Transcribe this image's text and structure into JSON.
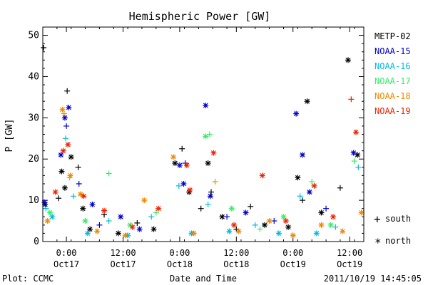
{
  "chart_data": {
    "type": "scatter",
    "title": "Hemispheric Power [GW]",
    "ylabel": "P [GW]",
    "xlabel": "Date and Time",
    "ylim": [
      0,
      52
    ],
    "xlim": [
      "2011-10-16T19:00",
      "2011-10-19T15:00"
    ],
    "yticks": [
      "0",
      "10",
      "20",
      "30",
      "40",
      "50"
    ],
    "xticks": [
      {
        "t": "2011-10-17T00:00",
        "label1": "0:00",
        "label2": "Oct17"
      },
      {
        "t": "2011-10-17T12:00",
        "label1": "12:00",
        "label2": "Oct17"
      },
      {
        "t": "2011-10-18T00:00",
        "label1": "0:00",
        "label2": "Oct18"
      },
      {
        "t": "2011-10-18T12:00",
        "label1": "12:00",
        "label2": "Oct18"
      },
      {
        "t": "2011-10-19T00:00",
        "label1": "0:00",
        "label2": "Oct19"
      },
      {
        "t": "2011-10-19T12:00",
        "label1": "12:00",
        "label2": "Oct19"
      }
    ],
    "legend_position": "right",
    "marker_legend": {
      "plus": "south",
      "star": "north"
    },
    "series": [
      {
        "name": "METP-02",
        "color": "#000000",
        "points": [
          {
            "t": "2011-10-16T19:10",
            "y": 47,
            "m": "plus"
          },
          {
            "t": "2011-10-16T19:30",
            "y": 9,
            "m": "star"
          },
          {
            "t": "2011-10-16T22:20",
            "y": 10.5,
            "m": "plus"
          },
          {
            "t": "2011-10-16T23:00",
            "y": 17,
            "m": "star"
          },
          {
            "t": "2011-10-16T23:40",
            "y": 13,
            "m": "star"
          },
          {
            "t": "2011-10-17T00:10",
            "y": 36.5,
            "m": "plus"
          },
          {
            "t": "2011-10-17T01:00",
            "y": 20.5,
            "m": "star"
          },
          {
            "t": "2011-10-17T02:30",
            "y": 18,
            "m": "plus"
          },
          {
            "t": "2011-10-17T03:30",
            "y": 8,
            "m": "star"
          },
          {
            "t": "2011-10-17T05:00",
            "y": 3,
            "m": "star"
          },
          {
            "t": "2011-10-17T08:00",
            "y": 6.5,
            "m": "plus"
          },
          {
            "t": "2011-10-17T11:00",
            "y": 2,
            "m": "star"
          },
          {
            "t": "2011-10-17T15:00",
            "y": 4.5,
            "m": "plus"
          },
          {
            "t": "2011-10-17T18:30",
            "y": 3,
            "m": "star"
          },
          {
            "t": "2011-10-17T23:00",
            "y": 19,
            "m": "star"
          },
          {
            "t": "2011-10-18T00:30",
            "y": 22.5,
            "m": "plus"
          },
          {
            "t": "2011-10-18T02:00",
            "y": 12,
            "m": "star"
          },
          {
            "t": "2011-10-18T04:30",
            "y": 8,
            "m": "plus"
          },
          {
            "t": "2011-10-18T06:00",
            "y": 19,
            "m": "star"
          },
          {
            "t": "2011-10-18T06:40",
            "y": 12,
            "m": "plus"
          },
          {
            "t": "2011-10-18T09:00",
            "y": 6,
            "m": "star"
          },
          {
            "t": "2011-10-18T12:00",
            "y": 3,
            "m": "plus"
          },
          {
            "t": "2011-10-18T15:00",
            "y": 8.5,
            "m": "plus"
          },
          {
            "t": "2011-10-18T18:00",
            "y": 4,
            "m": "star"
          },
          {
            "t": "2011-10-18T23:00",
            "y": 3.5,
            "m": "star"
          },
          {
            "t": "2011-10-19T01:00",
            "y": 15.5,
            "m": "star"
          },
          {
            "t": "2011-10-19T02:00",
            "y": 10,
            "m": "plus"
          },
          {
            "t": "2011-10-19T03:00",
            "y": 34,
            "m": "star"
          },
          {
            "t": "2011-10-19T06:00",
            "y": 7,
            "m": "star"
          },
          {
            "t": "2011-10-19T10:00",
            "y": 13,
            "m": "plus"
          },
          {
            "t": "2011-10-19T11:40",
            "y": 44,
            "m": "star"
          },
          {
            "t": "2011-10-19T13:40",
            "y": 21,
            "m": "star"
          }
        ]
      },
      {
        "name": "NOAA-15",
        "color": "#0000cc",
        "points": [
          {
            "t": "2011-10-16T19:20",
            "y": 9.5,
            "m": "star"
          },
          {
            "t": "2011-10-16T22:50",
            "y": 21,
            "m": "star"
          },
          {
            "t": "2011-10-16T23:40",
            "y": 30,
            "m": "star"
          },
          {
            "t": "2011-10-17T00:00",
            "y": 28,
            "m": "plus"
          },
          {
            "t": "2011-10-17T00:30",
            "y": 32.5,
            "m": "star"
          },
          {
            "t": "2011-10-17T02:40",
            "y": 14,
            "m": "plus"
          },
          {
            "t": "2011-10-17T05:30",
            "y": 9,
            "m": "star"
          },
          {
            "t": "2011-10-17T07:00",
            "y": 4,
            "m": "plus"
          },
          {
            "t": "2011-10-17T11:30",
            "y": 6,
            "m": "star"
          },
          {
            "t": "2011-10-17T15:30",
            "y": 3,
            "m": "star"
          },
          {
            "t": "2011-10-18T00:00",
            "y": 18.5,
            "m": "star"
          },
          {
            "t": "2011-10-18T00:50",
            "y": 14,
            "m": "star"
          },
          {
            "t": "2011-10-18T01:10",
            "y": 19,
            "m": "plus"
          },
          {
            "t": "2011-10-18T05:30",
            "y": 33,
            "m": "star"
          },
          {
            "t": "2011-10-18T06:30",
            "y": 11,
            "m": "star"
          },
          {
            "t": "2011-10-18T10:00",
            "y": 6,
            "m": "plus"
          },
          {
            "t": "2011-10-18T14:00",
            "y": 7,
            "m": "star"
          },
          {
            "t": "2011-10-18T20:00",
            "y": 5,
            "m": "plus"
          },
          {
            "t": "2011-10-19T00:40",
            "y": 31,
            "m": "star"
          },
          {
            "t": "2011-10-19T02:00",
            "y": 21,
            "m": "star"
          },
          {
            "t": "2011-10-19T03:30",
            "y": 12,
            "m": "star"
          },
          {
            "t": "2011-10-19T07:00",
            "y": 8,
            "m": "plus"
          },
          {
            "t": "2011-10-19T12:50",
            "y": 21.5,
            "m": "star"
          }
        ]
      },
      {
        "name": "NOAA-16",
        "color": "#00bbdd",
        "points": [
          {
            "t": "2011-10-16T19:40",
            "y": 8,
            "m": "plus"
          },
          {
            "t": "2011-10-16T21:00",
            "y": 6,
            "m": "star"
          },
          {
            "t": "2011-10-16T23:50",
            "y": 25,
            "m": "plus"
          },
          {
            "t": "2011-10-17T01:30",
            "y": 11,
            "m": "plus"
          },
          {
            "t": "2011-10-17T04:30",
            "y": 2,
            "m": "star"
          },
          {
            "t": "2011-10-17T09:00",
            "y": 5,
            "m": "plus"
          },
          {
            "t": "2011-10-17T13:00",
            "y": 1.5,
            "m": "star"
          },
          {
            "t": "2011-10-17T18:00",
            "y": 6,
            "m": "plus"
          },
          {
            "t": "2011-10-17T23:50",
            "y": 13.5,
            "m": "plus"
          },
          {
            "t": "2011-10-18T02:30",
            "y": 2,
            "m": "star"
          },
          {
            "t": "2011-10-18T06:00",
            "y": 9,
            "m": "plus"
          },
          {
            "t": "2011-10-18T10:30",
            "y": 2.5,
            "m": "star"
          },
          {
            "t": "2011-10-18T16:00",
            "y": 4,
            "m": "plus"
          },
          {
            "t": "2011-10-18T21:00",
            "y": 2,
            "m": "star"
          },
          {
            "t": "2011-10-19T01:30",
            "y": 11,
            "m": "plus"
          },
          {
            "t": "2011-10-19T05:00",
            "y": 2,
            "m": "star"
          },
          {
            "t": "2011-10-19T09:00",
            "y": 3.5,
            "m": "plus"
          },
          {
            "t": "2011-10-19T13:50",
            "y": 18,
            "m": "plus"
          }
        ]
      },
      {
        "name": "NOAA-17",
        "color": "#33ee66",
        "points": [
          {
            "t": "2011-10-16T20:30",
            "y": 7,
            "m": "star"
          },
          {
            "t": "2011-10-17T00:40",
            "y": 15.5,
            "m": "plus"
          },
          {
            "t": "2011-10-17T04:00",
            "y": 5,
            "m": "star"
          },
          {
            "t": "2011-10-17T09:00",
            "y": 16.5,
            "m": "plus"
          },
          {
            "t": "2011-10-17T13:30",
            "y": 4,
            "m": "star"
          },
          {
            "t": "2011-10-17T19:00",
            "y": 7,
            "m": "plus"
          },
          {
            "t": "2011-10-18T05:30",
            "y": 25.5,
            "m": "star"
          },
          {
            "t": "2011-10-18T06:20",
            "y": 26,
            "m": "plus"
          },
          {
            "t": "2011-10-18T11:00",
            "y": 8,
            "m": "star"
          },
          {
            "t": "2011-10-18T17:00",
            "y": 3,
            "m": "plus"
          },
          {
            "t": "2011-10-18T22:00",
            "y": 6,
            "m": "star"
          },
          {
            "t": "2011-10-19T04:00",
            "y": 14.5,
            "m": "plus"
          },
          {
            "t": "2011-10-19T08:00",
            "y": 4,
            "m": "star"
          },
          {
            "t": "2011-10-19T13:00",
            "y": 19.5,
            "m": "plus"
          }
        ]
      },
      {
        "name": "NOAA-18",
        "color": "#ee8800",
        "points": [
          {
            "t": "2011-10-16T20:00",
            "y": 5,
            "m": "star"
          },
          {
            "t": "2011-10-16T23:10",
            "y": 32,
            "m": "star"
          },
          {
            "t": "2011-10-16T23:30",
            "y": 31,
            "m": "plus"
          },
          {
            "t": "2011-10-17T00:50",
            "y": 16,
            "m": "star"
          },
          {
            "t": "2011-10-17T03:00",
            "y": 11.5,
            "m": "star"
          },
          {
            "t": "2011-10-17T06:30",
            "y": 2.5,
            "m": "star"
          },
          {
            "t": "2011-10-17T12:30",
            "y": 1.5,
            "m": "star"
          },
          {
            "t": "2011-10-17T16:30",
            "y": 10,
            "m": "star"
          },
          {
            "t": "2011-10-17T22:40",
            "y": 20.5,
            "m": "star"
          },
          {
            "t": "2011-10-18T03:00",
            "y": 2,
            "m": "star"
          },
          {
            "t": "2011-10-18T07:30",
            "y": 14.5,
            "m": "plus"
          },
          {
            "t": "2011-10-18T12:30",
            "y": 2.5,
            "m": "star"
          },
          {
            "t": "2011-10-18T19:00",
            "y": 5,
            "m": "star"
          },
          {
            "t": "2011-10-19T00:00",
            "y": 1.5,
            "m": "star"
          },
          {
            "t": "2011-10-19T06:00",
            "y": 4,
            "m": "star"
          },
          {
            "t": "2011-10-19T10:30",
            "y": 2.5,
            "m": "star"
          },
          {
            "t": "2011-10-19T14:30",
            "y": 7,
            "m": "star"
          }
        ]
      },
      {
        "name": "NOAA-19",
        "color": "#ee2200",
        "points": [
          {
            "t": "2011-10-16T21:40",
            "y": 12,
            "m": "star"
          },
          {
            "t": "2011-10-16T23:20",
            "y": 22,
            "m": "star"
          },
          {
            "t": "2011-10-17T00:20",
            "y": 23.5,
            "m": "star"
          },
          {
            "t": "2011-10-17T03:40",
            "y": 11,
            "m": "star"
          },
          {
            "t": "2011-10-17T08:00",
            "y": 7.5,
            "m": "star"
          },
          {
            "t": "2011-10-17T14:00",
            "y": 3.5,
            "m": "star"
          },
          {
            "t": "2011-10-17T19:30",
            "y": 8,
            "m": "star"
          },
          {
            "t": "2011-10-18T01:30",
            "y": 18.5,
            "m": "star"
          },
          {
            "t": "2011-10-18T02:10",
            "y": 12.5,
            "m": "star"
          },
          {
            "t": "2011-10-18T07:10",
            "y": 21.5,
            "m": "star"
          },
          {
            "t": "2011-10-18T11:30",
            "y": 4,
            "m": "star"
          },
          {
            "t": "2011-10-18T17:30",
            "y": 16,
            "m": "star"
          },
          {
            "t": "2011-10-18T22:30",
            "y": 5,
            "m": "star"
          },
          {
            "t": "2011-10-19T04:30",
            "y": 13.5,
            "m": "star"
          },
          {
            "t": "2011-10-19T08:30",
            "y": 6,
            "m": "star"
          },
          {
            "t": "2011-10-19T12:20",
            "y": 34.5,
            "m": "plus"
          },
          {
            "t": "2011-10-19T13:20",
            "y": 26.5,
            "m": "star"
          }
        ]
      }
    ]
  },
  "footer": {
    "left": "Plot: CCMC",
    "right": "2011/10/19 14:45:05"
  }
}
